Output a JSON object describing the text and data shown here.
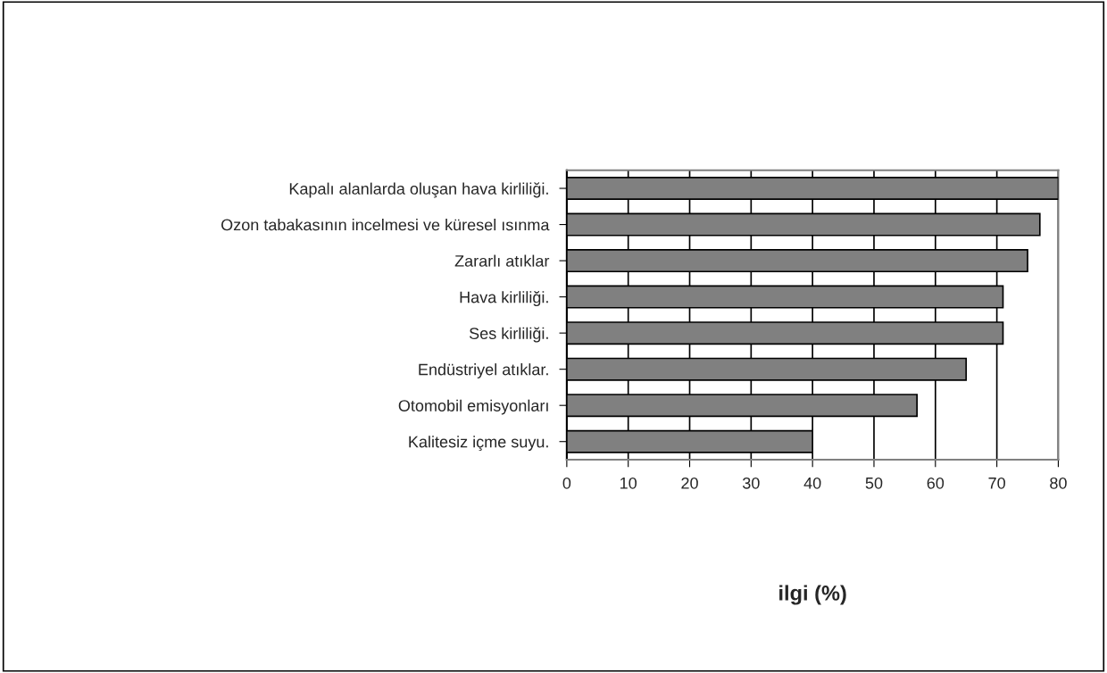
{
  "chart_data": {
    "type": "bar",
    "orientation": "horizontal",
    "xlabel": "ilgi (%)",
    "categories": [
      "Kapalı alanlarda oluşan hava kirliliği.",
      "Ozon tabakasının incelmesi ve küresel ısınma",
      "Zararlı atıklar",
      "Hava kirliliği.",
      "Ses kirliliği.",
      "Endüstriyel atıklar.",
      "Otomobil emisyonları",
      "Kalitesiz içme suyu."
    ],
    "values": [
      80,
      77,
      75,
      71,
      71,
      65,
      57,
      40
    ],
    "color": "#808080",
    "xlim": [
      0,
      80
    ],
    "xticks": [
      0,
      10,
      20,
      30,
      40,
      50,
      60,
      70,
      80
    ],
    "grid": "x"
  }
}
